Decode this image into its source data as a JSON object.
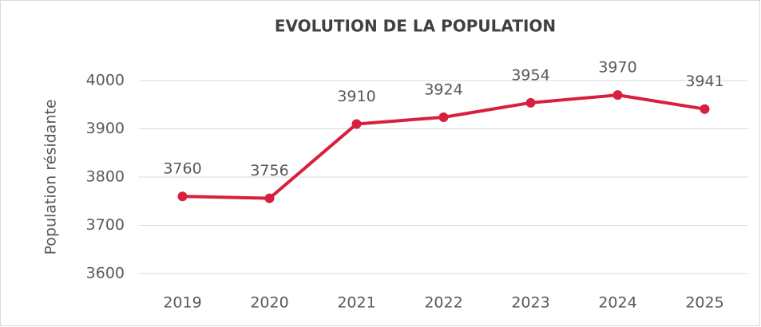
{
  "chart_data": {
    "type": "line",
    "title": "EVOLUTION DE LA POPULATION",
    "y_label": "Population résidante",
    "categories": [
      "2019",
      "2020",
      "2021",
      "2022",
      "2023",
      "2024",
      "2025"
    ],
    "values": [
      3760,
      3756,
      3910,
      3924,
      3954,
      3970,
      3941
    ],
    "color": "#d91f3f",
    "ylim": [
      3600,
      4000
    ],
    "yticks": [
      3600,
      3700,
      3800,
      3900,
      4000
    ],
    "grid": true
  }
}
